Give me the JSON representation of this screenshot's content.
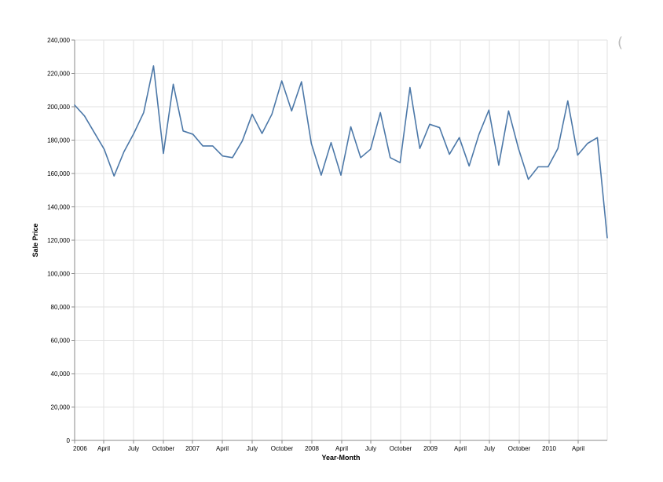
{
  "chart_data": {
    "type": "line",
    "title": "",
    "xlabel": "Year-Month",
    "ylabel": "Sale Price",
    "x_ticks": [
      "2006",
      "April",
      "July",
      "October",
      "2007",
      "April",
      "July",
      "October",
      "2008",
      "April",
      "July",
      "October",
      "2009",
      "April",
      "July",
      "October",
      "2010",
      "April"
    ],
    "y_ticks": [
      "0",
      "20,000",
      "40,000",
      "60,000",
      "80,000",
      "100,000",
      "120,000",
      "140,000",
      "160,000",
      "180,000",
      "200,000",
      "220,000",
      "240,000"
    ],
    "ylim": [
      0,
      240000
    ],
    "xlim": [
      "2006-01",
      "2010-07"
    ],
    "grid": true,
    "line_color": "#4c78a8",
    "x": [
      "2006-01",
      "2006-02",
      "2006-03",
      "2006-04",
      "2006-05",
      "2006-06",
      "2006-07",
      "2006-08",
      "2006-09",
      "2006-10",
      "2006-11",
      "2006-12",
      "2007-01",
      "2007-02",
      "2007-03",
      "2007-04",
      "2007-05",
      "2007-06",
      "2007-07",
      "2007-08",
      "2007-09",
      "2007-10",
      "2007-11",
      "2007-12",
      "2008-01",
      "2008-02",
      "2008-03",
      "2008-04",
      "2008-05",
      "2008-06",
      "2008-07",
      "2008-08",
      "2008-09",
      "2008-10",
      "2008-11",
      "2008-12",
      "2009-01",
      "2009-02",
      "2009-03",
      "2009-04",
      "2009-05",
      "2009-06",
      "2009-07",
      "2009-08",
      "2009-09",
      "2009-10",
      "2009-11",
      "2009-12",
      "2010-01",
      "2010-02",
      "2010-03",
      "2010-04",
      "2010-05",
      "2010-06",
      "2010-07"
    ],
    "series": [
      {
        "values": [
          201000,
          194500,
          184500,
          174500,
          158500,
          173000,
          184000,
          196500,
          224500,
          172000,
          213500,
          185500,
          183500,
          176500,
          176500,
          170500,
          169500,
          179500,
          195500,
          184000,
          195500,
          215500,
          197500,
          215000,
          178000,
          159000,
          178500,
          159000,
          188000,
          169500,
          174500,
          196500,
          169500,
          166500,
          211500,
          175000,
          189500,
          187500,
          171500,
          181500,
          164500,
          183500,
          198000,
          165000,
          197500,
          175000,
          156500,
          164000,
          164000,
          175000,
          203500,
          171000,
          178000,
          181500,
          121500
        ]
      }
    ]
  },
  "overlay": {
    "partial_glyph": "("
  }
}
